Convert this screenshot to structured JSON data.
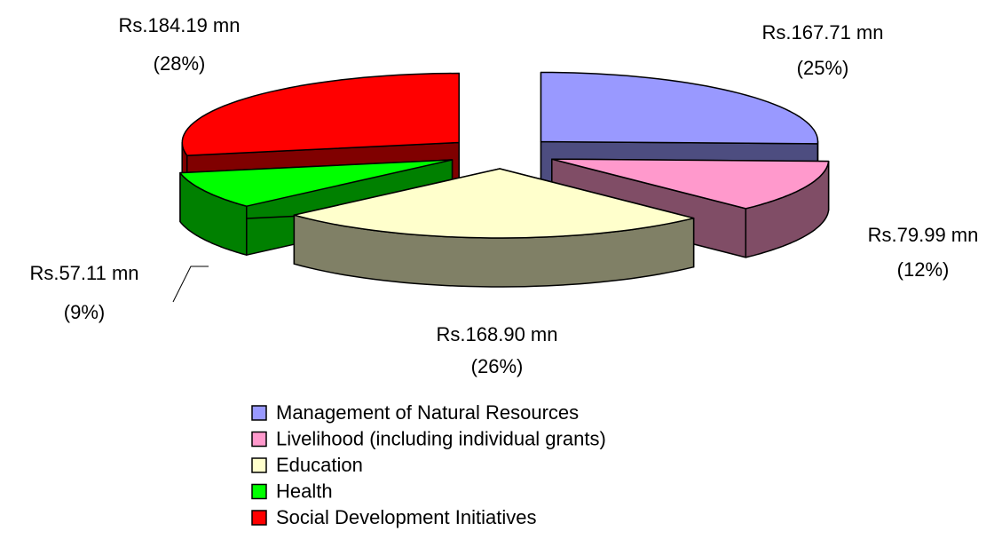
{
  "chart_data": {
    "type": "pie3d",
    "categories": [
      "Management of Natural Resources",
      "Livelihood (including individual grants)",
      "Education",
      "Health",
      "Social Development Initiatives"
    ],
    "values": [
      167.71,
      79.99,
      168.9,
      57.11,
      184.19
    ],
    "value_labels": [
      "Rs.167.71 mn",
      "Rs.79.99 mn",
      "Rs.168.90 mn",
      "Rs.57.11 mn",
      "Rs.184.19 mn"
    ],
    "percentages": [
      25,
      12,
      26,
      9,
      28
    ],
    "percentage_labels": [
      "(25%)",
      "(12%)",
      "(26%)",
      "(9%)",
      "(28%)"
    ],
    "colors": [
      "#9999ff",
      "#ff99cc",
      "#ffffcc",
      "#00ff00",
      "#ff0000"
    ],
    "side_colors": [
      "#4d4d80",
      "#804d66",
      "#808066",
      "#008000",
      "#800000"
    ],
    "legend": "bottom"
  }
}
